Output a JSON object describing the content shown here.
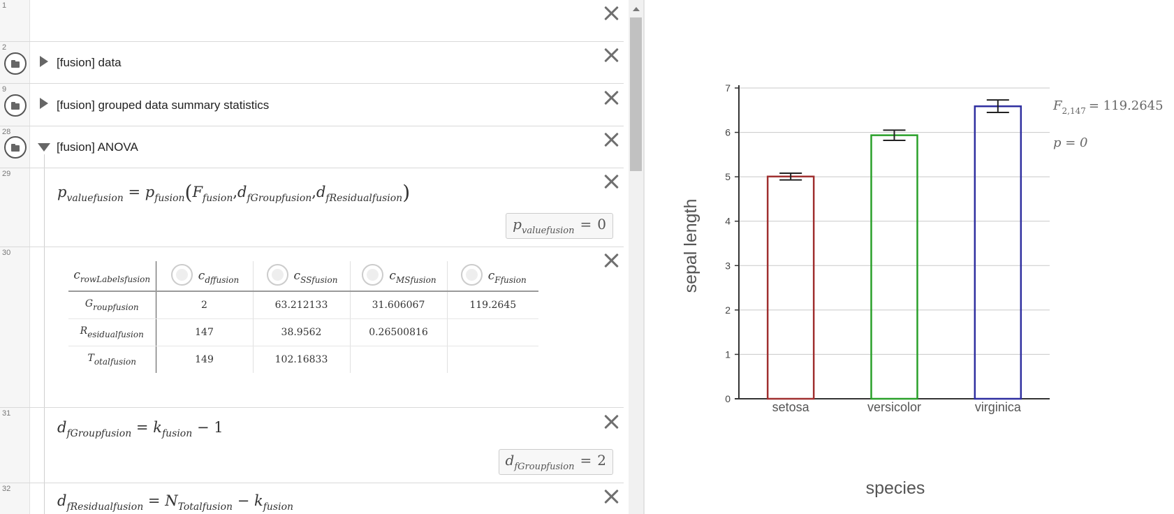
{
  "rows": {
    "r1": {
      "num": "1"
    },
    "r2": {
      "num": "2",
      "title": "[fusion] data"
    },
    "r9": {
      "num": "9",
      "title": "[fusion] grouped data summary statistics"
    },
    "r28": {
      "num": "28",
      "title": "[fusion] ANOVA"
    },
    "r29": {
      "num": "29",
      "lhs": {
        "base": "p",
        "sub": "valuefusion"
      },
      "fn": {
        "base": "p",
        "sub": "fusion"
      },
      "args": [
        {
          "base": "F",
          "sub": "fusion"
        },
        {
          "base": "d",
          "sub": "fGroupfusion"
        },
        {
          "base": "d",
          "sub": "fResidualfusion"
        }
      ],
      "result": {
        "base": "p",
        "sub": "valuefusion",
        "eq": "=",
        "value": "0"
      }
    },
    "r30": {
      "num": "30",
      "headers": [
        {
          "base": "c",
          "sub": "rowLabelsfusion"
        },
        {
          "base": "c",
          "sub": "dffusion"
        },
        {
          "base": "c",
          "sub": "SSfusion"
        },
        {
          "base": "c",
          "sub": "MSfusion"
        },
        {
          "base": "c",
          "sub": "Ffusion"
        }
      ],
      "rows": [
        {
          "label": {
            "base": "G",
            "sub": "roupfusion"
          },
          "cells": [
            "2",
            "63.212133",
            "31.606067",
            "119.2645"
          ]
        },
        {
          "label": {
            "base": "R",
            "sub": "esidualfusion"
          },
          "cells": [
            "147",
            "38.9562",
            "0.26500816",
            ""
          ]
        },
        {
          "label": {
            "base": "T",
            "sub": "otalfusion"
          },
          "cells": [
            "149",
            "102.16833",
            "",
            ""
          ]
        }
      ]
    },
    "r31": {
      "num": "31",
      "lhs": {
        "base": "d",
        "sub": "fGroupfusion"
      },
      "rhs": {
        "base": "k",
        "sub": "fusion",
        "tail": "− 1"
      },
      "result": {
        "base": "d",
        "sub": "fGroupfusion",
        "eq": "=",
        "value": "2"
      }
    },
    "r32": {
      "num": "32",
      "lhs": {
        "base": "d",
        "sub": "fResidualfusion"
      },
      "rhs1": {
        "base": "N",
        "sub": "Totalfusion"
      },
      "minus": "−",
      "rhs2": {
        "base": "k",
        "sub": "fusion"
      }
    }
  },
  "chart_data": {
    "type": "bar",
    "categories": [
      "setosa",
      "versicolor",
      "virginica"
    ],
    "values": [
      5.006,
      5.936,
      6.588
    ],
    "error_low": [
      4.93,
      5.82,
      6.45
    ],
    "error_high": [
      5.08,
      6.05,
      6.73
    ],
    "series_colors": [
      "#a03030",
      "#2aa02a",
      "#2f2fa0"
    ],
    "fill": "none",
    "xlabel": "species",
    "ylabel": "sepal length",
    "ylim": [
      0,
      7
    ],
    "yticks": [
      "0",
      "1",
      "2",
      "3",
      "4",
      "5",
      "6",
      "7"
    ],
    "grid": true,
    "annotations": {
      "f_base": "F",
      "f_sub": "2,147",
      "f_eq": "= 119.2645",
      "p_text": "p = 0"
    }
  }
}
